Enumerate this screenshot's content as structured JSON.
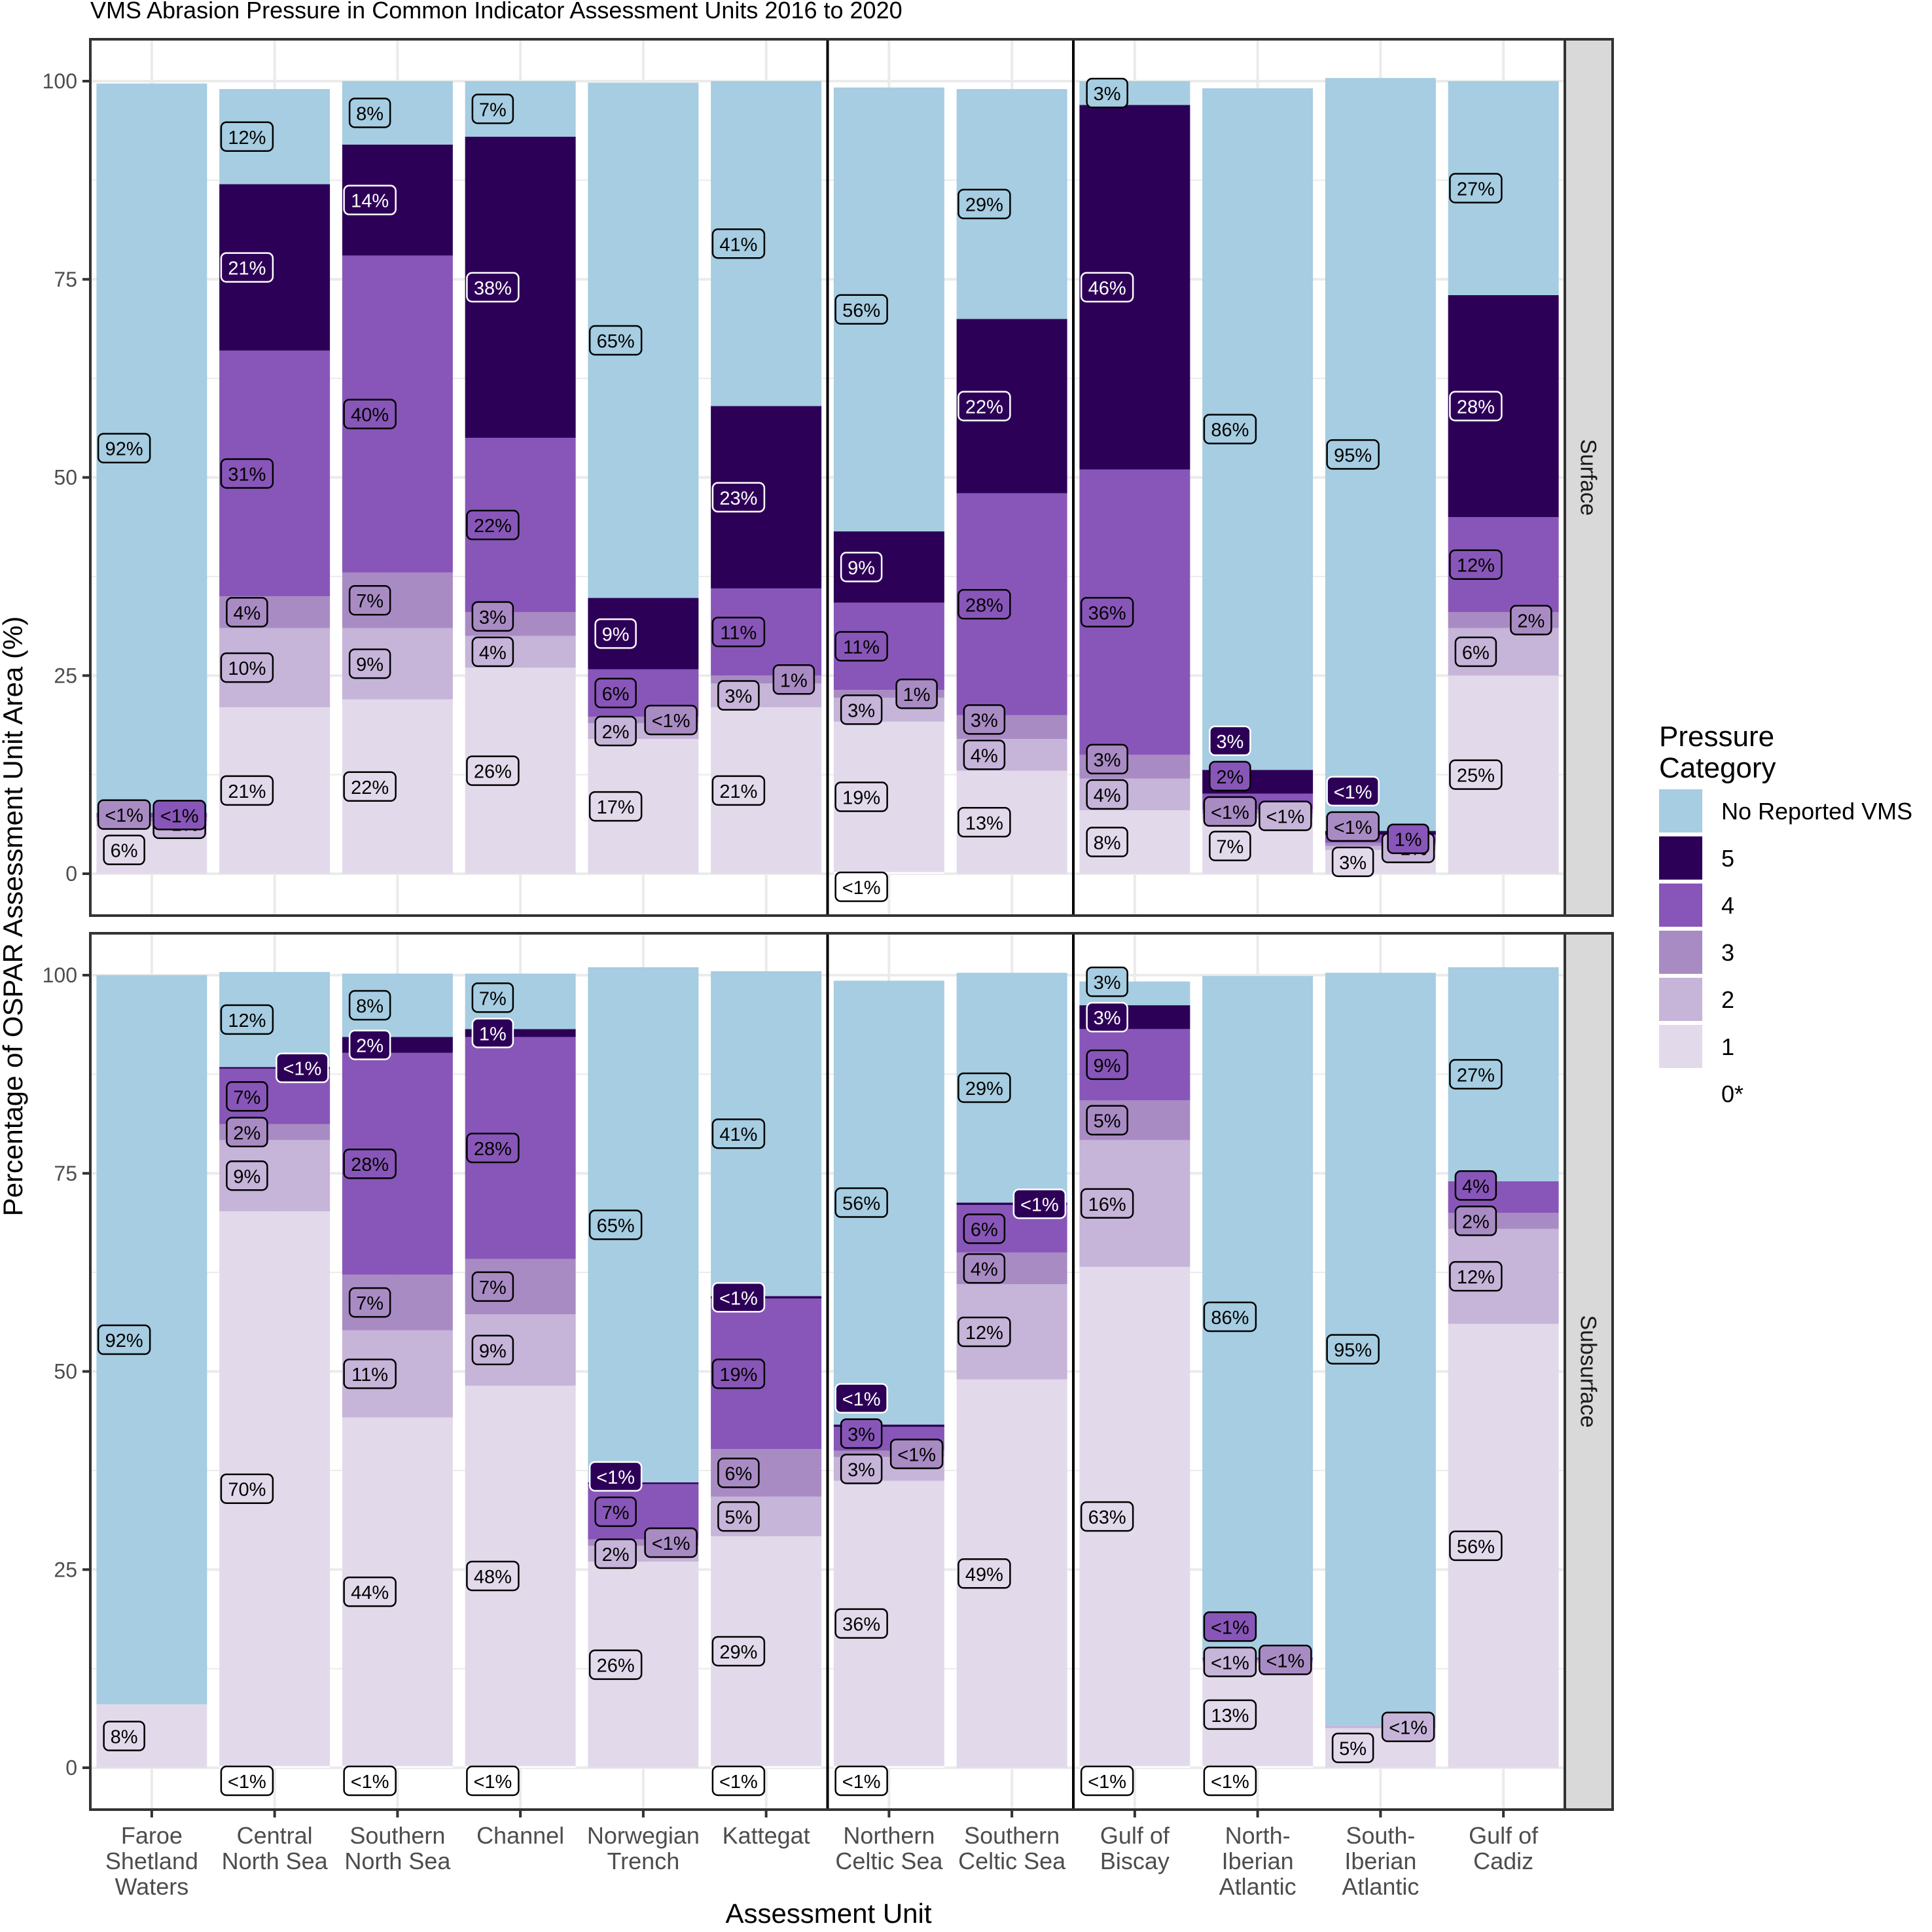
{
  "chart_data": {
    "type": "bar",
    "stacked": true,
    "title": "VMS Abrasion Pressure in Common Indicator Assessment Units 2016 to 2020",
    "xlabel": "Assessment Unit",
    "ylabel": "Percentage of OSPAR Assessment Unit Area (%)",
    "ylim": [
      0,
      100
    ],
    "yticks": [
      "0",
      "25",
      "50",
      "75",
      "100"
    ],
    "grid": true,
    "categories": [
      "Faroe\nShetland\nWaters",
      "Central\nNorth Sea",
      "Southern\nNorth Sea",
      "Channel",
      "Norwegian\nTrench",
      "Kattegat",
      "Northern\nCeltic Sea",
      "Southern\nCeltic Sea",
      "Gulf of\nBiscay",
      "North-\nIberian\nAtlantic",
      "South-\nIberian\nAtlantic",
      "Gulf of\nCadiz"
    ],
    "category_groups": [
      [
        0,
        1,
        2,
        3,
        4,
        5
      ],
      [
        6,
        7
      ],
      [
        8,
        9,
        10,
        11
      ]
    ],
    "legend": {
      "title": "Pressure\nCategory",
      "position": "right",
      "entries": [
        {
          "key": "none",
          "label": "No Reported VMS",
          "color": "#a6cde1"
        },
        {
          "key": "c5",
          "label": "5",
          "color": "#2d0057"
        },
        {
          "key": "c4",
          "label": "4",
          "color": "#8856b8"
        },
        {
          "key": "c3",
          "label": "3",
          "color": "#a98bc4"
        },
        {
          "key": "c2",
          "label": "2",
          "color": "#c6b4d9"
        },
        {
          "key": "c1",
          "label": "1",
          "color": "#e2daeb"
        },
        {
          "key": "c0",
          "label": "0*",
          "color": "#ffffff"
        }
      ]
    },
    "stack_order": [
      "c0",
      "c1",
      "c2",
      "c3",
      "c4",
      "c5",
      "none"
    ],
    "panels": [
      {
        "name": "Surface",
        "bars": [
          {
            "c0": [
              0,
              null
            ],
            "c1": [
              6,
              "6%"
            ],
            "c2": [
              0.6,
              "<1%"
            ],
            "c3": [
              0.5,
              "<1%"
            ],
            "c4": [
              0.6,
              "<1%"
            ],
            "c5": [
              0,
              null
            ],
            "none": [
              92,
              "92%"
            ]
          },
          {
            "c0": [
              0,
              null
            ],
            "c1": [
              21,
              "21%"
            ],
            "c2": [
              10,
              "10%"
            ],
            "c3": [
              4,
              "4%"
            ],
            "c4": [
              31,
              "31%"
            ],
            "c5": [
              21,
              "21%"
            ],
            "none": [
              12,
              "12%"
            ]
          },
          {
            "c0": [
              0,
              null
            ],
            "c1": [
              22,
              "22%"
            ],
            "c2": [
              9,
              "9%"
            ],
            "c3": [
              7,
              "7%"
            ],
            "c4": [
              40,
              "40%"
            ],
            "c5": [
              14,
              "14%"
            ],
            "none": [
              8,
              "8%"
            ]
          },
          {
            "c0": [
              0,
              null
            ],
            "c1": [
              26,
              "26%"
            ],
            "c2": [
              4,
              "4%"
            ],
            "c3": [
              3,
              "3%"
            ],
            "c4": [
              22,
              "22%"
            ],
            "c5": [
              38,
              "38%"
            ],
            "none": [
              7,
              "7%"
            ]
          },
          {
            "c0": [
              0,
              null
            ],
            "c1": [
              17,
              "17%"
            ],
            "c2": [
              2,
              "2%"
            ],
            "c3": [
              0.8,
              "<1%"
            ],
            "c4": [
              6,
              "6%"
            ],
            "c5": [
              9,
              "9%"
            ],
            "none": [
              65,
              "65%"
            ]
          },
          {
            "c0": [
              0,
              null
            ],
            "c1": [
              21,
              "21%"
            ],
            "c2": [
              3,
              "3%"
            ],
            "c3": [
              1,
              "1%"
            ],
            "c4": [
              11,
              "11%"
            ],
            "c5": [
              23,
              "23%"
            ],
            "none": [
              41,
              "41%"
            ]
          },
          {
            "c0": [
              0.2,
              "<1%"
            ],
            "c1": [
              19,
              "19%"
            ],
            "c2": [
              3,
              "3%"
            ],
            "c3": [
              1,
              "1%"
            ],
            "c4": [
              11,
              "11%"
            ],
            "c5": [
              9,
              "9%"
            ],
            "none": [
              56,
              "56%"
            ]
          },
          {
            "c0": [
              0,
              null
            ],
            "c1": [
              13,
              "13%"
            ],
            "c2": [
              4,
              "4%"
            ],
            "c3": [
              3,
              "3%"
            ],
            "c4": [
              28,
              "28%"
            ],
            "c5": [
              22,
              "22%"
            ],
            "none": [
              29,
              "29%"
            ]
          },
          {
            "c0": [
              0,
              null
            ],
            "c1": [
              8,
              "8%"
            ],
            "c2": [
              4,
              "4%"
            ],
            "c3": [
              3,
              "3%"
            ],
            "c4": [
              36,
              "36%"
            ],
            "c5": [
              46,
              "46%"
            ],
            "none": [
              3,
              "3%"
            ]
          },
          {
            "c0": [
              0,
              null
            ],
            "c1": [
              7,
              "7%"
            ],
            "c2": [
              0.6,
              "<1%"
            ],
            "c3": [
              0.5,
              "<1%"
            ],
            "c4": [
              2,
              "2%"
            ],
            "c5": [
              3,
              "3%"
            ],
            "none": [
              86,
              "86%"
            ]
          },
          {
            "c0": [
              0,
              null
            ],
            "c1": [
              3,
              "3%"
            ],
            "c2": [
              0.5,
              "<1%"
            ],
            "c3": [
              0.4,
              "<1%"
            ],
            "c4": [
              1,
              "1%"
            ],
            "c5": [
              0.5,
              "<1%"
            ],
            "none": [
              95,
              "95%"
            ]
          },
          {
            "c0": [
              0,
              null
            ],
            "c1": [
              25,
              "25%"
            ],
            "c2": [
              6,
              "6%"
            ],
            "c3": [
              2,
              "2%"
            ],
            "c4": [
              12,
              "12%"
            ],
            "c5": [
              28,
              "28%"
            ],
            "none": [
              27,
              "27%"
            ]
          }
        ]
      },
      {
        "name": "Subsurface",
        "bars": [
          {
            "c0": [
              0,
              null
            ],
            "c1": [
              8,
              "8%"
            ],
            "c2": [
              0,
              null
            ],
            "c3": [
              0,
              null
            ],
            "c4": [
              0,
              null
            ],
            "c5": [
              0,
              null
            ],
            "none": [
              92,
              "92%"
            ]
          },
          {
            "c0": [
              0.2,
              "<1%"
            ],
            "c1": [
              70,
              "70%"
            ],
            "c2": [
              9,
              "9%"
            ],
            "c3": [
              2,
              "2%"
            ],
            "c4": [
              7,
              "7%"
            ],
            "c5": [
              0.2,
              "<1%"
            ],
            "none": [
              12,
              "12%"
            ]
          },
          {
            "c0": [
              0.2,
              "<1%"
            ],
            "c1": [
              44,
              "44%"
            ],
            "c2": [
              11,
              "11%"
            ],
            "c3": [
              7,
              "7%"
            ],
            "c4": [
              28,
              "28%"
            ],
            "c5": [
              2,
              "2%"
            ],
            "none": [
              8,
              "8%"
            ]
          },
          {
            "c0": [
              0.2,
              "<1%"
            ],
            "c1": [
              48,
              "48%"
            ],
            "c2": [
              9,
              "9%"
            ],
            "c3": [
              7,
              "7%"
            ],
            "c4": [
              28,
              "28%"
            ],
            "c5": [
              1,
              "1%"
            ],
            "none": [
              7,
              "7%"
            ]
          },
          {
            "c0": [
              0,
              null
            ],
            "c1": [
              26,
              "26%"
            ],
            "c2": [
              2,
              "2%"
            ],
            "c3": [
              0.8,
              "<1%"
            ],
            "c4": [
              7,
              "7%"
            ],
            "c5": [
              0.2,
              "<1%"
            ],
            "none": [
              65,
              "65%"
            ]
          },
          {
            "c0": [
              0.2,
              "<1%"
            ],
            "c1": [
              29,
              "29%"
            ],
            "c2": [
              5,
              "5%"
            ],
            "c3": [
              6,
              "6%"
            ],
            "c4": [
              19,
              "19%"
            ],
            "c5": [
              0.3,
              "<1%"
            ],
            "none": [
              41,
              "41%"
            ]
          },
          {
            "c0": [
              0.2,
              "<1%"
            ],
            "c1": [
              36,
              "36%"
            ],
            "c2": [
              3,
              "3%"
            ],
            "c3": [
              0.8,
              "<1%"
            ],
            "c4": [
              3,
              "3%"
            ],
            "c5": [
              0.3,
              "<1%"
            ],
            "none": [
              56,
              "56%"
            ]
          },
          {
            "c0": [
              0,
              null
            ],
            "c1": [
              49,
              "49%"
            ],
            "c2": [
              12,
              "12%"
            ],
            "c3": [
              4,
              "4%"
            ],
            "c4": [
              6,
              "6%"
            ],
            "c5": [
              0.3,
              "<1%"
            ],
            "none": [
              29,
              "29%"
            ]
          },
          {
            "c0": [
              0.2,
              "<1%"
            ],
            "c1": [
              63,
              "63%"
            ],
            "c2": [
              16,
              "16%"
            ],
            "c3": [
              5,
              "5%"
            ],
            "c4": [
              9,
              "9%"
            ],
            "c5": [
              3,
              "3%"
            ],
            "none": [
              3,
              "3%"
            ]
          },
          {
            "c0": [
              0.2,
              "<1%"
            ],
            "c1": [
              13,
              "13%"
            ],
            "c2": [
              0.3,
              "<1%"
            ],
            "c3": [
              0.2,
              "<1%"
            ],
            "c4": [
              0.2,
              "<1%"
            ],
            "c5": [
              0,
              null
            ],
            "none": [
              86,
              "86%"
            ]
          },
          {
            "c0": [
              0,
              null
            ],
            "c1": [
              5,
              "5%"
            ],
            "c2": [
              0.3,
              "<1%"
            ],
            "c3": [
              0,
              null
            ],
            "c4": [
              0,
              null
            ],
            "c5": [
              0,
              null
            ],
            "none": [
              95,
              "95%"
            ]
          },
          {
            "c0": [
              0,
              null
            ],
            "c1": [
              56,
              "56%"
            ],
            "c2": [
              12,
              "12%"
            ],
            "c3": [
              2,
              "2%"
            ],
            "c4": [
              4,
              "4%"
            ],
            "c5": [
              0,
              null
            ],
            "none": [
              27,
              "27%"
            ]
          }
        ]
      }
    ]
  }
}
